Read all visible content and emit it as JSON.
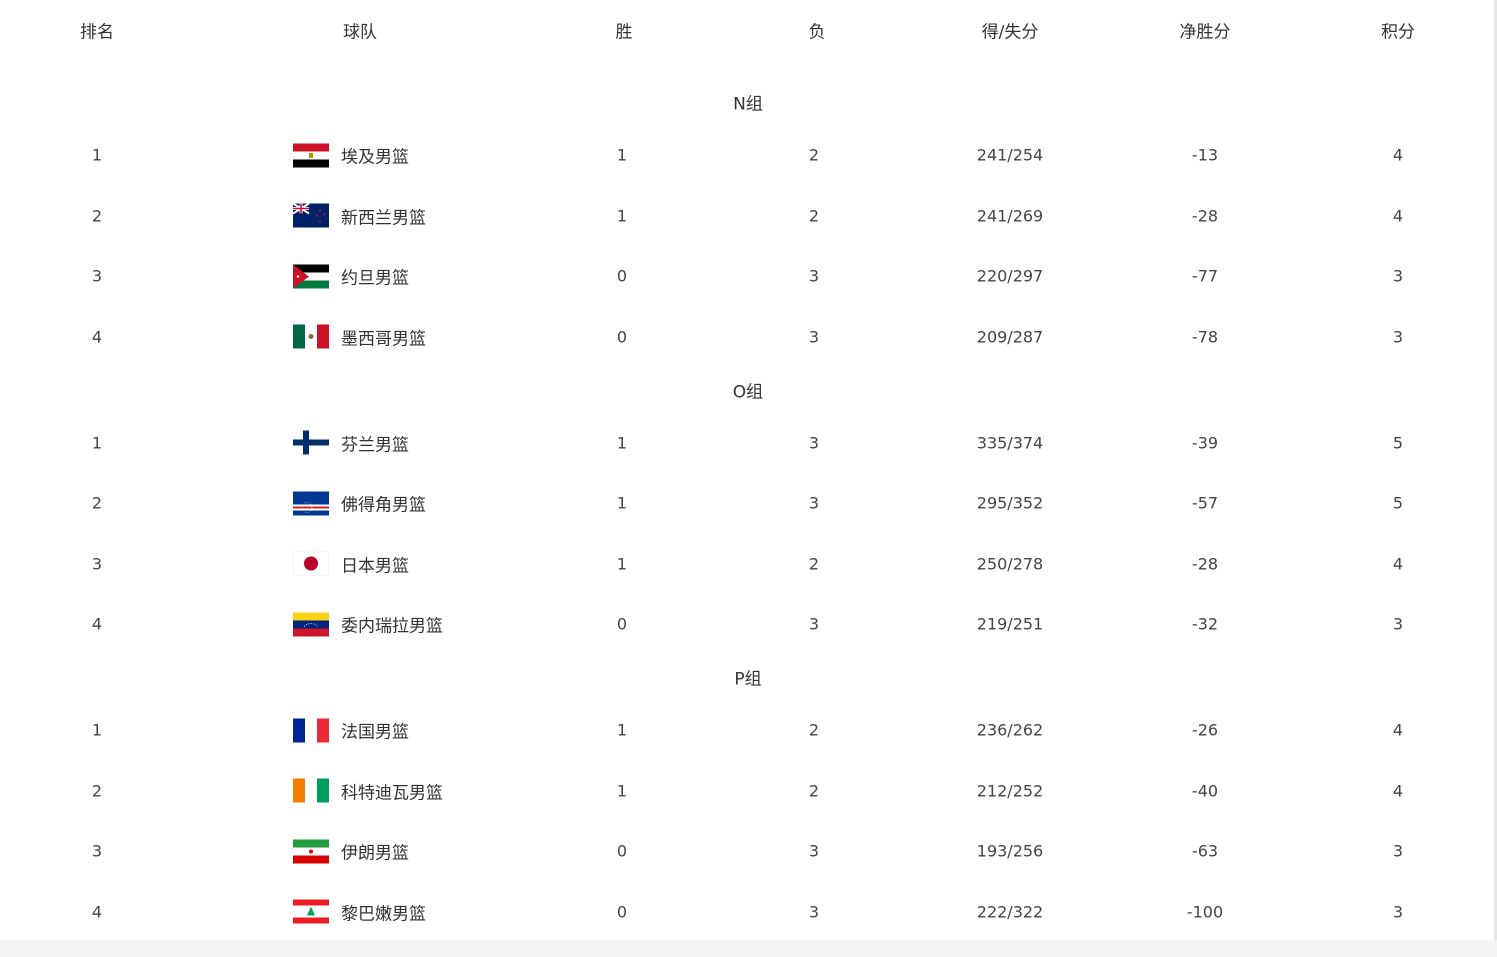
{
  "headers": [
    "排名",
    "球队",
    "胜",
    "负",
    "得/失分",
    "净胜分",
    "积分"
  ],
  "groups": [
    {
      "name": "N组",
      "rows": [
        {
          "rank": "1",
          "flag": "egypt",
          "team": "埃及男篮",
          "w": "1",
          "l": "2",
          "pts": "241/254",
          "diff": "-13",
          "score": "4"
        },
        {
          "rank": "2",
          "flag": "new-zealand",
          "team": "新西兰男篮",
          "w": "1",
          "l": "2",
          "pts": "241/269",
          "diff": "-28",
          "score": "4"
        },
        {
          "rank": "3",
          "flag": "jordan",
          "team": "约旦男篮",
          "w": "0",
          "l": "3",
          "pts": "220/297",
          "diff": "-77",
          "score": "3"
        },
        {
          "rank": "4",
          "flag": "mexico",
          "team": "墨西哥男篮",
          "w": "0",
          "l": "3",
          "pts": "209/287",
          "diff": "-78",
          "score": "3"
        }
      ]
    },
    {
      "name": "O组",
      "rows": [
        {
          "rank": "1",
          "flag": "finland",
          "team": "芬兰男篮",
          "w": "1",
          "l": "3",
          "pts": "335/374",
          "diff": "-39",
          "score": "5"
        },
        {
          "rank": "2",
          "flag": "cape-verde",
          "team": "佛得角男篮",
          "w": "1",
          "l": "3",
          "pts": "295/352",
          "diff": "-57",
          "score": "5"
        },
        {
          "rank": "3",
          "flag": "japan",
          "team": "日本男篮",
          "w": "1",
          "l": "2",
          "pts": "250/278",
          "diff": "-28",
          "score": "4"
        },
        {
          "rank": "4",
          "flag": "venezuela",
          "team": "委内瑞拉男篮",
          "w": "0",
          "l": "3",
          "pts": "219/251",
          "diff": "-32",
          "score": "3"
        }
      ]
    },
    {
      "name": "P组",
      "rows": [
        {
          "rank": "1",
          "flag": "france",
          "team": "法国男篮",
          "w": "1",
          "l": "2",
          "pts": "236/262",
          "diff": "-26",
          "score": "4"
        },
        {
          "rank": "2",
          "flag": "ivory-coast",
          "team": "科特迪瓦男篮",
          "w": "1",
          "l": "2",
          "pts": "212/252",
          "diff": "-40",
          "score": "4"
        },
        {
          "rank": "3",
          "flag": "iran",
          "team": "伊朗男篮",
          "w": "0",
          "l": "3",
          "pts": "193/256",
          "diff": "-63",
          "score": "3"
        },
        {
          "rank": "4",
          "flag": "lebanon",
          "team": "黎巴嫩男篮",
          "w": "0",
          "l": "3",
          "pts": "222/322",
          "diff": "-100",
          "score": "3"
        }
      ]
    }
  ]
}
